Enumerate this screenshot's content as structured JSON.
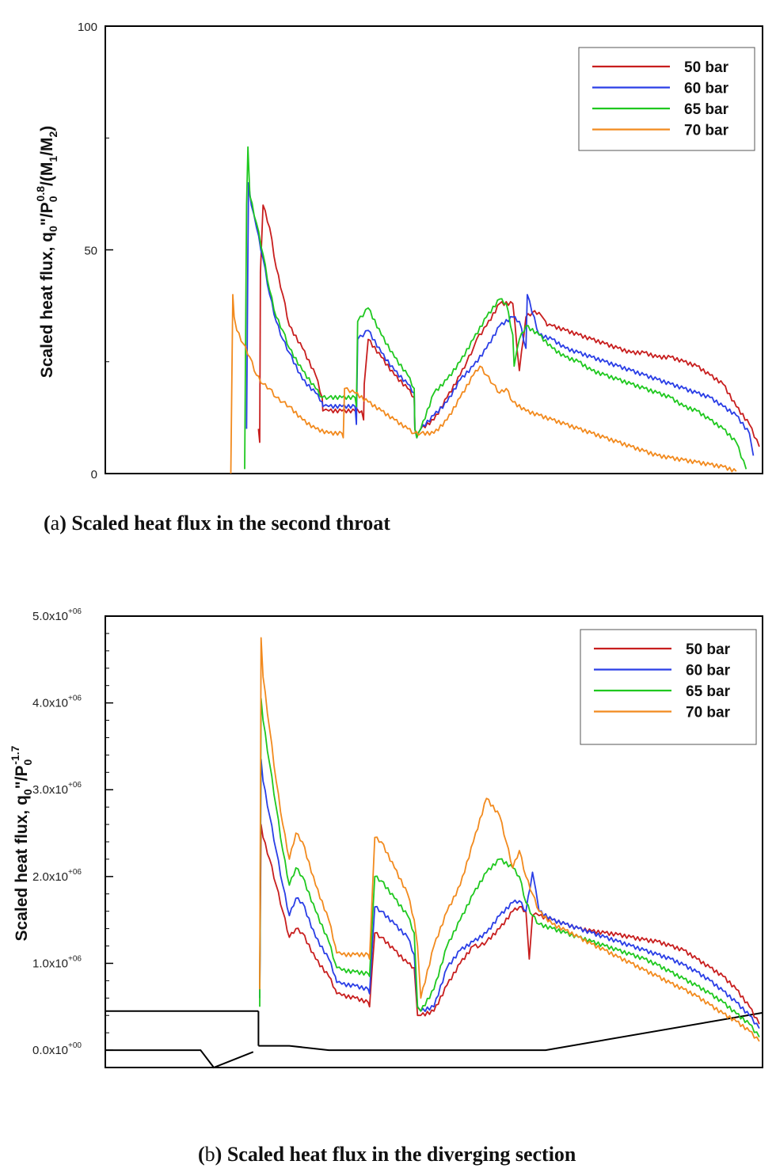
{
  "chart_data": [
    {
      "type": "line",
      "id": "a",
      "ylabel_parts": [
        "Scaled heat flux, q",
        "0",
        "\"/P",
        "0",
        "0.8",
        "/(M",
        "1",
        "/M",
        "2",
        ")"
      ],
      "ylim": [
        0,
        100
      ],
      "xlim": [
        0,
        100
      ],
      "yticks_major": [
        0,
        50,
        100
      ],
      "ytick_labels": [
        "0",
        "50",
        "100"
      ],
      "yticks_minor": [
        25,
        75
      ],
      "legend_position": "top-right",
      "caption": {
        "prefix": "(",
        "letter": "a",
        "suffix": ") Scaled heat flux in the second throat"
      },
      "series": [
        {
          "name": "50 bar",
          "color": "#c81e1e",
          "x": [
            23.3,
            23.5,
            23.6,
            24,
            25,
            26,
            27,
            28,
            30,
            32,
            33,
            33.1,
            34,
            36,
            38,
            39,
            39.3,
            39.4,
            40,
            42,
            44,
            46,
            47,
            47.1,
            47.4,
            47.6,
            48,
            50,
            52,
            54,
            55,
            56,
            56.5,
            58,
            60,
            62,
            63,
            64,
            65,
            66,
            66.5,
            67,
            67.2,
            68,
            70,
            72,
            74,
            76,
            78,
            80,
            82,
            84,
            86,
            88,
            90,
            92,
            94,
            96,
            98,
            99.5
          ],
          "y": [
            10,
            7,
            45,
            60,
            55,
            46,
            40,
            33,
            28,
            22,
            17,
            14,
            14,
            14,
            14,
            14,
            12,
            20,
            30,
            26,
            22,
            19,
            17,
            10,
            8,
            9,
            10,
            12,
            17,
            22,
            25,
            28,
            30,
            33,
            38,
            38,
            23,
            35,
            36,
            36,
            35,
            34,
            33,
            33,
            32,
            31,
            30,
            29,
            28,
            27,
            27,
            26,
            26,
            25,
            24,
            22,
            20,
            15,
            11,
            6
          ]
        },
        {
          "name": "60 bar",
          "color": "#2a3ee6",
          "x": [
            21.5,
            21.7,
            21.8,
            22.2,
            23,
            24,
            25,
            26,
            27,
            28,
            30,
            32,
            33,
            33.1,
            34,
            36,
            38,
            38.2,
            38.4,
            40,
            42,
            44,
            46,
            47,
            47.1,
            47.4,
            47.6,
            48,
            50,
            52,
            54,
            56,
            58,
            60,
            62,
            63,
            64,
            64.2,
            66,
            68,
            70,
            72,
            74,
            76,
            78,
            80,
            82,
            84,
            86,
            88,
            90,
            92,
            94,
            96,
            98,
            98.6
          ],
          "y": [
            10,
            50,
            65,
            60,
            55,
            48,
            40,
            34,
            30,
            27,
            21,
            18,
            16,
            15,
            15,
            15,
            15,
            11,
            30,
            32,
            27,
            23,
            20,
            18,
            10,
            8,
            9,
            10,
            13,
            16,
            21,
            24,
            28,
            33,
            35,
            34,
            28,
            40,
            31,
            30,
            28,
            27,
            26,
            25,
            24,
            23,
            22,
            21,
            20,
            19,
            18,
            17,
            15,
            13,
            9,
            4
          ]
        },
        {
          "name": "65 bar",
          "color": "#1fc81f",
          "x": [
            21.2,
            21.5,
            21.7,
            22,
            23,
            24,
            25,
            26,
            27,
            28,
            30,
            32,
            33,
            34,
            36,
            38,
            38.2,
            38.4,
            40,
            42,
            44,
            46,
            47,
            47.1,
            47.4,
            47.6,
            48,
            50,
            52,
            54,
            56,
            58,
            60,
            61,
            62,
            62.2,
            63,
            64,
            66,
            68,
            70,
            72,
            74,
            76,
            78,
            80,
            82,
            84,
            86,
            88,
            90,
            92,
            94,
            96,
            97.5
          ],
          "y": [
            1,
            60,
            73,
            62,
            56,
            49,
            41,
            35,
            32,
            28,
            23,
            19,
            17,
            17,
            17,
            17,
            15,
            34,
            37,
            31,
            26,
            22,
            19,
            10,
            8,
            9,
            10,
            18,
            21,
            25,
            30,
            35,
            39,
            38,
            31,
            24,
            30,
            33,
            31,
            28,
            26,
            25,
            23,
            22,
            21,
            20,
            19,
            18,
            17,
            15,
            14,
            12,
            10,
            7,
            1
          ]
        },
        {
          "name": "70 bar",
          "color": "#f28a1e",
          "x": [
            19.1,
            19.4,
            19.6,
            20,
            21,
            22,
            23,
            24,
            25,
            26,
            27,
            28,
            30,
            32,
            34,
            36,
            36.2,
            36.4,
            38,
            40,
            42,
            44,
            46,
            47,
            48,
            50,
            52,
            54,
            56,
            57,
            58,
            59,
            60,
            61,
            62,
            64,
            66,
            68,
            70,
            72,
            74,
            76,
            78,
            80,
            82,
            84,
            86,
            88,
            90,
            92,
            94,
            96
          ],
          "y": [
            0,
            40,
            35,
            32,
            29,
            26,
            22,
            20,
            19,
            17,
            16,
            15,
            12,
            10,
            9,
            9,
            8,
            19,
            18,
            16,
            14,
            12,
            10,
            9,
            9,
            9,
            12,
            17,
            22,
            24,
            22,
            20,
            18,
            19,
            16,
            14,
            13,
            12,
            11,
            10,
            9,
            8,
            7,
            6,
            5,
            4,
            3.5,
            3,
            2.5,
            2,
            1.5,
            0.5
          ]
        }
      ]
    },
    {
      "type": "line",
      "id": "b",
      "ylabel_parts": [
        "Scaled heat flux, q",
        "0",
        "\"/P",
        "0",
        "-1.7"
      ],
      "ylim": [
        -0.2,
        5.0
      ],
      "xlim": [
        0,
        100
      ],
      "yticks_major": [
        0,
        1,
        2,
        3,
        4,
        5
      ],
      "ytick_labels": [
        "0.0x10",
        "1.0x10",
        "2.0x10",
        "3.0x10",
        "4.0x10",
        "5.0x10"
      ],
      "ytick_exponents": [
        "+00",
        "+06",
        "+06",
        "+06",
        "+06",
        "+06"
      ],
      "yticks_minor": [
        0.2,
        0.4,
        0.6,
        0.8,
        1.2,
        1.4,
        1.6,
        1.8,
        2.2,
        2.4,
        2.6,
        2.8,
        3.2,
        3.4,
        3.6,
        3.8,
        4.2,
        4.4,
        4.6,
        4.8
      ],
      "legend_position": "top-right",
      "caption": {
        "prefix": "(",
        "letter": "b",
        "suffix": ") Scaled heat flux in the diverging section"
      },
      "geometry": [
        {
          "x": [
            0,
            23.3
          ],
          "y": [
            0.45,
            0.45
          ]
        },
        {
          "x": [
            23.3,
            23.3
          ],
          "y": [
            0.45,
            0.05
          ]
        },
        {
          "x": [
            0,
            14.5,
            16.5,
            22.5
          ],
          "y": [
            0.0,
            0.0,
            -0.2,
            -0.02
          ]
        },
        {
          "x": [
            23.3,
            28,
            34,
            67,
            100
          ],
          "y": [
            0.05,
            0.05,
            0.0,
            0.0,
            0.43
          ]
        }
      ],
      "series": [
        {
          "name": "50 bar",
          "color": "#c81e1e",
          "x": [
            23.5,
            23.7,
            24,
            25,
            26,
            27,
            28,
            29,
            30,
            32,
            34,
            35,
            35.2,
            36,
            38,
            40,
            40.2,
            41,
            42,
            44,
            46,
            47,
            47.5,
            48,
            50,
            52,
            54,
            56,
            57,
            58,
            60,
            62,
            63,
            64,
            64.5,
            65,
            65.5,
            66,
            68,
            70,
            72,
            74,
            76,
            78,
            80,
            82,
            84,
            86,
            88,
            90,
            92,
            94,
            96,
            98,
            99.5
          ],
          "y": [
            0.7,
            2.6,
            2.45,
            2.2,
            1.9,
            1.6,
            1.3,
            1.4,
            1.35,
            1.05,
            0.85,
            0.7,
            0.65,
            0.63,
            0.6,
            0.55,
            0.5,
            1.35,
            1.3,
            1.15,
            1.0,
            0.95,
            0.4,
            0.4,
            0.45,
            0.75,
            1.0,
            1.2,
            1.2,
            1.25,
            1.4,
            1.6,
            1.65,
            1.6,
            1.05,
            1.55,
            1.58,
            1.55,
            1.5,
            1.45,
            1.4,
            1.37,
            1.35,
            1.33,
            1.3,
            1.27,
            1.25,
            1.2,
            1.15,
            1.05,
            0.95,
            0.85,
            0.7,
            0.5,
            0.3
          ]
        },
        {
          "name": "60 bar",
          "color": "#2a3ee6",
          "x": [
            23.5,
            23.7,
            24,
            25,
            26,
            27,
            28,
            29,
            30,
            32,
            34,
            35,
            35.2,
            36,
            38,
            40,
            40.2,
            41,
            42,
            44,
            46,
            47,
            47.5,
            48,
            50,
            52,
            54,
            56,
            58,
            60,
            62,
            63,
            64,
            65,
            65.5,
            66,
            68,
            70,
            72,
            74,
            76,
            78,
            80,
            82,
            84,
            86,
            88,
            90,
            92,
            94,
            96,
            98,
            99.5
          ],
          "y": [
            0.6,
            3.35,
            3.1,
            2.7,
            2.3,
            1.9,
            1.55,
            1.75,
            1.7,
            1.3,
            1.05,
            0.85,
            0.78,
            0.76,
            0.74,
            0.7,
            0.65,
            1.65,
            1.6,
            1.45,
            1.3,
            1.1,
            0.5,
            0.45,
            0.5,
            0.95,
            1.15,
            1.25,
            1.35,
            1.55,
            1.7,
            1.72,
            1.6,
            2.05,
            1.85,
            1.6,
            1.5,
            1.45,
            1.4,
            1.35,
            1.3,
            1.25,
            1.2,
            1.15,
            1.1,
            1.05,
            0.98,
            0.9,
            0.8,
            0.68,
            0.55,
            0.4,
            0.25
          ]
        },
        {
          "name": "65 bar",
          "color": "#1fc81f",
          "x": [
            23.5,
            23.7,
            24,
            25,
            26,
            27,
            28,
            29,
            30,
            32,
            34,
            35,
            35.2,
            36,
            38,
            40,
            40.2,
            41,
            42,
            44,
            46,
            47,
            47.5,
            48,
            50,
            52,
            54,
            56,
            58,
            60,
            62,
            63,
            64,
            65,
            66,
            68,
            70,
            72,
            74,
            76,
            78,
            80,
            82,
            84,
            86,
            88,
            90,
            92,
            94,
            96,
            98,
            99.5
          ],
          "y": [
            0.5,
            4.05,
            3.8,
            3.3,
            2.8,
            2.3,
            1.9,
            2.1,
            2.0,
            1.6,
            1.25,
            1.0,
            0.95,
            0.92,
            0.9,
            0.88,
            0.85,
            2.0,
            1.95,
            1.75,
            1.55,
            1.35,
            0.5,
            0.45,
            0.7,
            1.2,
            1.5,
            1.8,
            2.05,
            2.2,
            2.1,
            2.0,
            1.7,
            1.55,
            1.45,
            1.4,
            1.35,
            1.3,
            1.25,
            1.2,
            1.15,
            1.1,
            1.05,
            0.98,
            0.9,
            0.82,
            0.74,
            0.65,
            0.55,
            0.42,
            0.3,
            0.15
          ]
        },
        {
          "name": "70 bar",
          "color": "#f28a1e",
          "x": [
            23.5,
            23.7,
            24,
            25,
            26,
            27,
            28,
            29,
            30,
            32,
            34,
            35,
            35.2,
            36,
            38,
            40,
            40.2,
            41,
            42,
            44,
            46,
            47,
            47.5,
            48,
            50,
            52,
            54,
            56,
            58,
            60,
            61,
            62,
            63,
            64,
            65,
            66,
            68,
            70,
            72,
            74,
            76,
            78,
            80,
            82,
            84,
            86,
            88,
            90,
            92,
            94,
            96,
            98,
            99.5
          ],
          "y": [
            0.7,
            4.75,
            4.3,
            3.7,
            3.1,
            2.6,
            2.2,
            2.5,
            2.4,
            1.9,
            1.5,
            1.2,
            1.12,
            1.1,
            1.1,
            1.1,
            1.05,
            2.45,
            2.4,
            2.1,
            1.8,
            1.5,
            1.2,
            0.6,
            1.2,
            1.6,
            1.9,
            2.4,
            2.9,
            2.7,
            2.4,
            2.1,
            2.3,
            2.0,
            1.8,
            1.6,
            1.45,
            1.38,
            1.3,
            1.22,
            1.15,
            1.07,
            1.0,
            0.92,
            0.85,
            0.77,
            0.7,
            0.62,
            0.52,
            0.42,
            0.33,
            0.22,
            0.1
          ]
        }
      ]
    }
  ]
}
